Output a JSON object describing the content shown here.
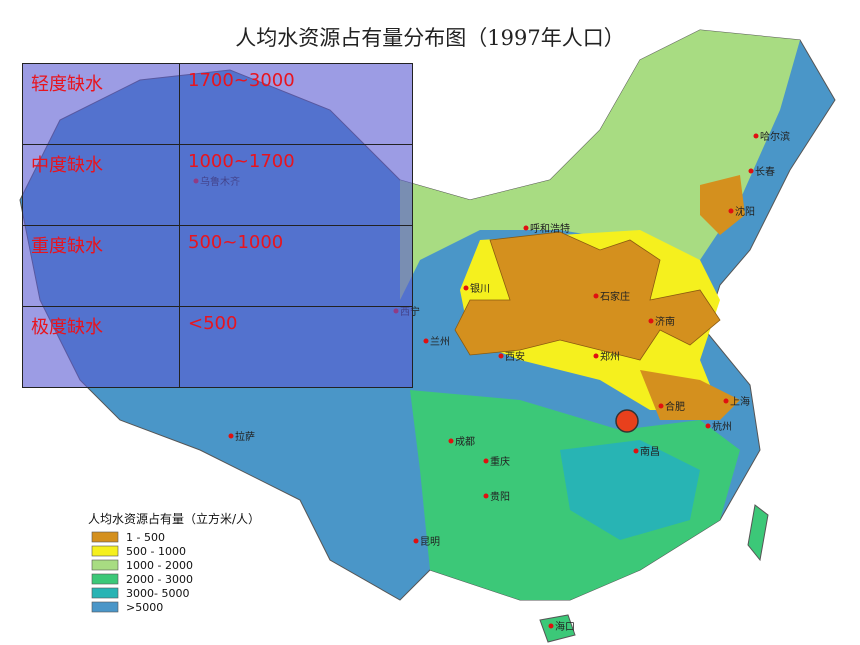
{
  "title": "人均水资源占有量分布图（1997年人口）",
  "table": {
    "rows": [
      [
        "轻度缺水",
        "1700~3000"
      ],
      [
        "中度缺水",
        "1000~1700"
      ],
      [
        "重度缺水",
        "500~1000"
      ],
      [
        "极度缺水",
        "<500"
      ]
    ]
  },
  "legend": {
    "title": "人均水资源占有量（立方米/人）",
    "items": [
      {
        "label": "1 - 500",
        "color": "#d4901e"
      },
      {
        "label": "500 - 1000",
        "color": "#f5f01e"
      },
      {
        "label": "1000 - 2000",
        "color": "#a8dc82"
      },
      {
        "label": "2000 - 3000",
        "color": "#3cc878"
      },
      {
        "label": "3000- 5000",
        "color": "#28b4b4"
      },
      {
        "label": ">5000",
        "color": "#4a96c8"
      }
    ]
  },
  "cities": [
    "哈尔滨",
    "长春",
    "沈阳",
    "呼和浩特",
    "银川",
    "兰州",
    "西宁",
    "西安",
    "石家庄",
    "济南",
    "郑州",
    "合肥",
    "上海",
    "杭州",
    "南昌",
    "成都",
    "重庆",
    "贵阳",
    "昆明",
    "拉萨",
    "乌鲁木齐",
    "海口"
  ]
}
